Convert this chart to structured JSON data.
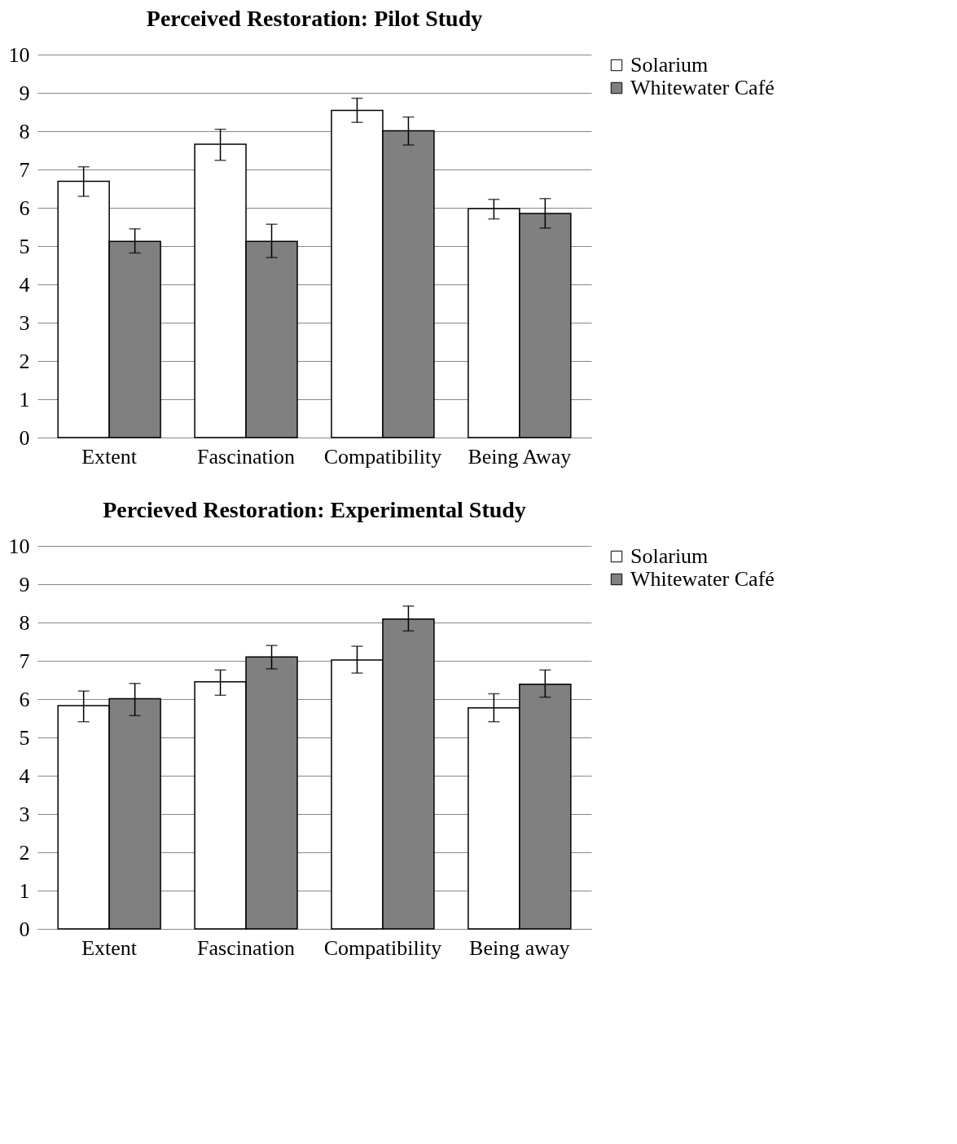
{
  "chart_data": [
    {
      "type": "bar",
      "title": "Perceived Restoration: Pilot Study",
      "categories": [
        "Extent",
        "Fascination",
        "Compatibility",
        "Being Away"
      ],
      "ylim": [
        0,
        10
      ],
      "yticks": [
        0,
        1,
        2,
        3,
        4,
        5,
        6,
        7,
        8,
        9,
        10
      ],
      "grid": "y",
      "legend": "right",
      "series": [
        {
          "name": "Solarium",
          "color": "#ffffff",
          "values": [
            6.69,
            7.66,
            8.54,
            5.98
          ],
          "errors": [
            [
              6.3,
              7.07
            ],
            [
              7.24,
              8.05
            ],
            [
              8.23,
              8.86
            ],
            [
              5.71,
              6.22
            ]
          ]
        },
        {
          "name": "Whitewater Café",
          "color": "#808080",
          "values": [
            5.12,
            5.12,
            8.01,
            5.85
          ],
          "errors": [
            [
              4.82,
              5.45
            ],
            [
              4.7,
              5.57
            ],
            [
              7.64,
              8.37
            ],
            [
              5.47,
              6.24
            ]
          ]
        }
      ]
    },
    {
      "type": "bar",
      "title": "Percieved Restoration: Experimental Study",
      "categories": [
        "Extent",
        "Fascination",
        "Compatibility",
        "Being away"
      ],
      "ylim": [
        0,
        10
      ],
      "yticks": [
        0,
        1,
        2,
        3,
        4,
        5,
        6,
        7,
        8,
        9,
        10
      ],
      "grid": "y",
      "legend": "right",
      "series": [
        {
          "name": "Solarium",
          "color": "#ffffff",
          "values": [
            5.83,
            6.45,
            7.02,
            5.77
          ],
          "errors": [
            [
              5.41,
              6.21
            ],
            [
              6.1,
              6.76
            ],
            [
              6.68,
              7.38
            ],
            [
              5.41,
              6.14
            ]
          ]
        },
        {
          "name": "Whitewater Café",
          "color": "#808080",
          "values": [
            6.01,
            7.1,
            8.09,
            6.39
          ],
          "errors": [
            [
              5.57,
              6.41
            ],
            [
              6.79,
              7.4
            ],
            [
              7.78,
              8.43
            ],
            [
              6.05,
              6.76
            ]
          ]
        }
      ]
    }
  ]
}
